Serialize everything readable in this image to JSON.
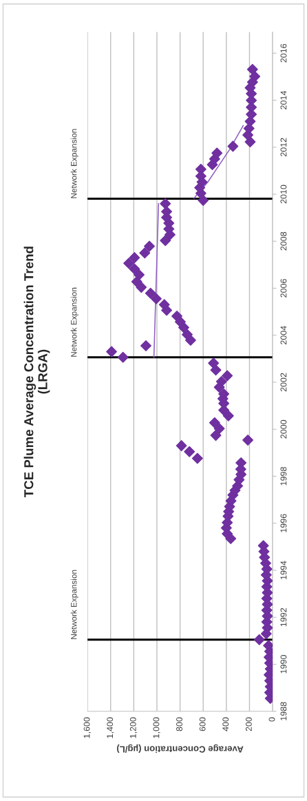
{
  "chart_data": {
    "type": "scatter",
    "title": "TCE Plume Average Concentration Trend\n(LRGA)",
    "xlabel": "Average Concentration (µg/L)",
    "xlim": [
      1600,
      0
    ],
    "xticks": [
      {
        "value": 1600,
        "label": "1,600"
      },
      {
        "value": 1400,
        "label": "1,400"
      },
      {
        "value": 1200,
        "label": "1,200"
      },
      {
        "value": 1000,
        "label": "1,000"
      },
      800,
      600,
      400,
      200,
      0
    ],
    "ylim": [
      1988,
      2016.9
    ],
    "yticks": [
      1988,
      1990,
      1992,
      1994,
      1996,
      1998,
      2000,
      2002,
      2004,
      2006,
      2008,
      2010,
      2012,
      2014,
      2016
    ],
    "grid": "x",
    "marker": "diamond",
    "series": [
      {
        "color": "#7030a0",
        "values": [
          1988.55,
          1988.8,
          1989.05,
          1989.3,
          1989.55,
          1989.8,
          1990.05,
          1990.3,
          1990.55,
          1990.8,
          1991.05,
          1991.3,
          1991.55,
          1991.8,
          1992.05,
          1992.3,
          1992.55,
          1992.8,
          1993.05,
          1993.3,
          1993.55,
          1993.8,
          1994.05,
          1994.3,
          1994.55,
          1994.8,
          1995.05,
          1995.35,
          1995.55,
          1995.8,
          1996.03,
          1996.3,
          1996.5,
          1996.71,
          1996.95,
          1997.2,
          1997.4,
          1997.59,
          1997.85,
          1998.08,
          1998.3,
          1998.57,
          1998.76,
          1999.05,
          1999.3,
          1999.54,
          1999.74,
          2000.03,
          2000.28,
          2000.57,
          2000.81,
          2001.1,
          2001.3,
          2001.5,
          2001.79,
          2002.03,
          2002.28,
          2002.52,
          2002.81,
          2003.06,
          2003.3,
          2003.55,
          2003.79,
          2004.03,
          2004.33,
          2004.57,
          2004.81,
          2005.06,
          2005.3,
          2005.55,
          2005.79,
          2006.04,
          2006.28,
          2006.57,
          2006.82,
          2007.06,
          2007.3,
          2007.5,
          2007.79,
          2008.03,
          2008.28,
          2008.52,
          2008.77,
          2009.01,
          2009.26,
          2009.6,
          2009.74,
          2010.04,
          2010.28,
          2010.52,
          2010.77,
          2011.06,
          2011.26,
          2011.5,
          2011.75,
          2012.04,
          2012.23,
          2012.52,
          2012.8,
          2013.1,
          2013.4,
          2013.7,
          2013.99,
          2014.28,
          2014.53,
          2014.77,
          2015.01,
          2015.31
        ],
        "x": [
          20,
          25,
          20,
          25,
          30,
          20,
          25,
          30,
          25,
          35,
          115,
          55,
          45,
          50,
          45,
          50,
          45,
          50,
          45,
          50,
          45,
          55,
          50,
          60,
          70,
          75,
          80,
          362,
          392,
          400,
          392,
          385,
          380,
          372,
          360,
          343,
          325,
          303,
          290,
          273,
          275,
          273,
          650,
          719,
          788,
          214,
          491,
          461,
          501,
          382,
          422,
          422,
          430,
          422,
          461,
          442,
          392,
          491,
          511,
          1293,
          1392,
          1095,
          709,
          738,
          768,
          798,
          827,
          916,
          936,
          1006,
          1055,
          1135,
          1174,
          1154,
          1194,
          1243,
          1194,
          1105,
          1065,
          927,
          887,
          897,
          897,
          916,
          916,
          927,
          600,
          620,
          630,
          610,
          620,
          620,
          521,
          501,
          481,
          343,
          194,
          214,
          204,
          194,
          184,
          184,
          184,
          184,
          194,
          174,
          154,
          174
        ]
      },
      {
        "type": "line",
        "color": "#8e5cc4",
        "marker": "none",
        "x": [
          1026,
          986
        ],
        "values": [
          2003.06,
          2009.6
        ]
      },
      {
        "type": "line",
        "color": "#8e5cc4",
        "marker": "none",
        "x": [
          679,
          560,
          372,
          254
        ],
        "values": [
          2009.83,
          2010.52,
          2011.9,
          2012.92
        ]
      }
    ],
    "ref_lines": [
      {
        "axis": "y",
        "value": 1991.05,
        "label": "Network Expansion",
        "color": "#000000"
      },
      {
        "axis": "y",
        "value": 2003.06,
        "label": "Network Expansion",
        "color": "#000000"
      },
      {
        "axis": "y",
        "value": 2009.81,
        "label": "Network Expansion",
        "color": "#000000"
      }
    ]
  }
}
